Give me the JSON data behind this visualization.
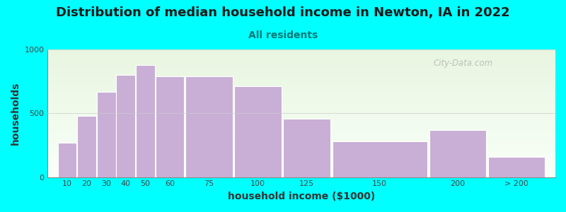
{
  "title": "Distribution of median household income in Newton, IA in 2022",
  "subtitle": "All residents",
  "xlabel": "household income ($1000)",
  "ylabel": "households",
  "background_color": "#00FFFF",
  "plot_bg_gradient_top": "#e8f5e0",
  "plot_bg_gradient_bottom": "#f8fff8",
  "bar_color": "#c9aed6",
  "bar_edge_color": "#ffffff",
  "categories": [
    "10",
    "20",
    "30",
    "40",
    "50",
    "60",
    "75",
    "100",
    "125",
    "150",
    "200",
    "> 200"
  ],
  "x_left": [
    10,
    20,
    30,
    40,
    50,
    60,
    75,
    100,
    125,
    150,
    200,
    230
  ],
  "x_width": [
    10,
    10,
    10,
    10,
    10,
    15,
    25,
    25,
    25,
    50,
    30,
    30
  ],
  "values": [
    270,
    480,
    670,
    800,
    880,
    790,
    790,
    710,
    460,
    280,
    370,
    160
  ],
  "ylim": [
    0,
    1000
  ],
  "xlim": [
    5,
    265
  ],
  "yticks": [
    0,
    500,
    1000
  ],
  "title_fontsize": 13,
  "subtitle_fontsize": 10,
  "axis_label_fontsize": 10,
  "tick_fontsize": 8,
  "title_color": "#1a1a1a",
  "subtitle_color": "#007777",
  "axis_label_color": "#333333",
  "tick_color": "#444444",
  "watermark_text": "City-Data.com",
  "watermark_color": "#b0b8b0"
}
